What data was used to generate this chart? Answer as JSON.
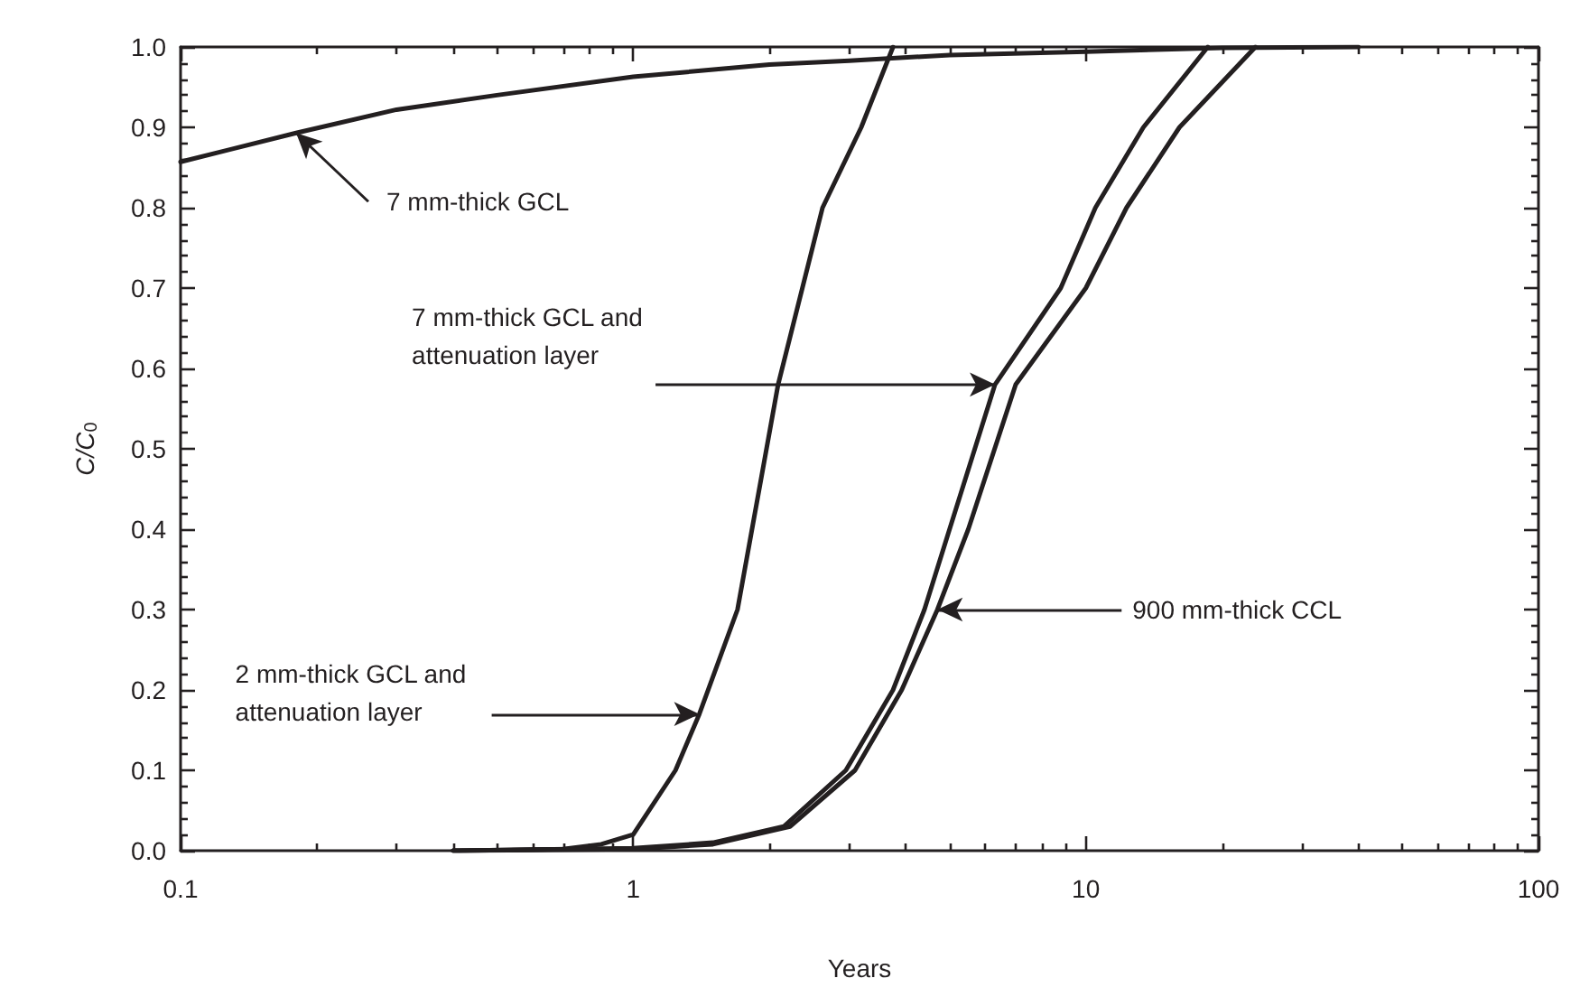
{
  "chart_data": {
    "type": "line",
    "xlabel": "Years",
    "ylabel": "C/C$_{0}$",
    "log": "x",
    "grid": false,
    "marker": "none",
    "line_style": "solid",
    "xlim": [
      0.1,
      100
    ],
    "ylim": [
      0,
      1
    ],
    "xticks": [
      0.1,
      1,
      10,
      100,
      {
        "value": 0.2,
        "label": null
      },
      {
        "value": 0.3,
        "label": null
      },
      {
        "value": 0.4,
        "label": null
      },
      {
        "value": 0.5,
        "label": null
      },
      {
        "value": 0.6,
        "label": null
      },
      {
        "value": 0.7,
        "label": null
      },
      {
        "value": 0.8,
        "label": null
      },
      {
        "value": 0.9,
        "label": null
      },
      {
        "value": 2,
        "label": null
      },
      {
        "value": 3,
        "label": null
      },
      {
        "value": 4,
        "label": null
      },
      {
        "value": 5,
        "label": null
      },
      {
        "value": 6,
        "label": null
      },
      {
        "value": 7,
        "label": null
      },
      {
        "value": 8,
        "label": null
      },
      {
        "value": 9,
        "label": null
      },
      {
        "value": 20,
        "label": null
      },
      {
        "value": 30,
        "label": null
      },
      {
        "value": 40,
        "label": null
      },
      {
        "value": 50,
        "label": null
      },
      {
        "value": 60,
        "label": null
      },
      {
        "value": 70,
        "label": null
      },
      {
        "value": 80,
        "label": null
      },
      {
        "value": 90,
        "label": null
      }
    ],
    "yticks": [
      {
        "value": 0,
        "label": "0.0"
      },
      0.1,
      0.2,
      0.3,
      0.4,
      0.5,
      0.6,
      0.7,
      0.8,
      0.9,
      {
        "value": 1,
        "label": "1.0"
      },
      {
        "value": 0.02,
        "label": null
      },
      {
        "value": 0.04,
        "label": null
      },
      {
        "value": 0.06,
        "label": null
      },
      {
        "value": 0.08,
        "label": null
      },
      {
        "value": 0.12,
        "label": null
      },
      {
        "value": 0.14,
        "label": null
      },
      {
        "value": 0.16,
        "label": null
      },
      {
        "value": 0.18,
        "label": null
      },
      {
        "value": 0.22,
        "label": null
      },
      {
        "value": 0.24,
        "label": null
      },
      {
        "value": 0.26,
        "label": null
      },
      {
        "value": 0.28,
        "label": null
      },
      {
        "value": 0.32,
        "label": null
      },
      {
        "value": 0.34,
        "label": null
      },
      {
        "value": 0.36,
        "label": null
      },
      {
        "value": 0.38,
        "label": null
      },
      {
        "value": 0.42,
        "label": null
      },
      {
        "value": 0.44,
        "label": null
      },
      {
        "value": 0.46,
        "label": null
      },
      {
        "value": 0.48,
        "label": null
      },
      {
        "value": 0.52,
        "label": null
      },
      {
        "value": 0.54,
        "label": null
      },
      {
        "value": 0.56,
        "label": null
      },
      {
        "value": 0.58,
        "label": null
      },
      {
        "value": 0.62,
        "label": null
      },
      {
        "value": 0.64,
        "label": null
      },
      {
        "value": 0.66,
        "label": null
      },
      {
        "value": 0.68,
        "label": null
      },
      {
        "value": 0.72,
        "label": null
      },
      {
        "value": 0.74,
        "label": null
      },
      {
        "value": 0.76,
        "label": null
      },
      {
        "value": 0.78,
        "label": null
      },
      {
        "value": 0.82,
        "label": null
      },
      {
        "value": 0.84,
        "label": null
      },
      {
        "value": 0.86,
        "label": null
      },
      {
        "value": 0.88,
        "label": null
      },
      {
        "value": 0.92,
        "label": null
      },
      {
        "value": 0.94,
        "label": null
      },
      {
        "value": 0.96,
        "label": null
      },
      {
        "value": 0.98,
        "label": null
      }
    ],
    "series": [
      {
        "color": "#231f20",
        "x": [
          0.1,
          0.18,
          0.3,
          0.5,
          1,
          2,
          3,
          5,
          10,
          20,
          40
        ],
        "values": [
          0.857,
          0.893,
          0.922,
          0.94,
          0.963,
          0.978,
          0.983,
          0.99,
          0.994,
          0.999,
          1.0
        ]
      },
      {
        "color": "#231f20",
        "x": [
          0.4,
          0.7,
          0.85,
          1,
          1.24,
          1.4,
          1.7,
          2.09,
          2.62,
          3.19,
          3.75
        ],
        "values": [
          0,
          0.002,
          0.008,
          0.02,
          0.1,
          0.17,
          0.3,
          0.58,
          0.8,
          0.9,
          1.0
        ]
      },
      {
        "color": "#231f20",
        "x": [
          0.4,
          1,
          1.5,
          2.15,
          2.95,
          3.75,
          4.4,
          5.0,
          6.3,
          8.8,
          10.5,
          13.4,
          18.6
        ],
        "values": [
          0,
          0.003,
          0.01,
          0.03,
          0.1,
          0.2,
          0.3,
          0.4,
          0.58,
          0.7,
          0.8,
          0.9,
          1.0
        ]
      },
      {
        "color": "#231f20",
        "x": [
          0.4,
          1,
          1.5,
          2.22,
          3.09,
          3.92,
          4.7,
          5.5,
          7.0,
          10.0,
          12.3,
          16.1,
          23.7
        ],
        "values": [
          0,
          0.002,
          0.008,
          0.03,
          0.1,
          0.2,
          0.3,
          0.4,
          0.58,
          0.7,
          0.8,
          0.9,
          1.0
        ]
      }
    ],
    "annotations": [
      {
        "text": "7 mm-thick GCL",
        "x": 0.18,
        "y": 0.893
      },
      {
        "text": "7 mm-thick GCL and\nattenuation layer",
        "x": 6.3,
        "y": 0.58
      },
      {
        "text": "2 mm-thick GCL and\nattenuation layer",
        "x": 1.4,
        "y": 0.17
      },
      {
        "text": "900 mm-thick CCL",
        "x": 4.7,
        "y": 0.3
      }
    ]
  }
}
